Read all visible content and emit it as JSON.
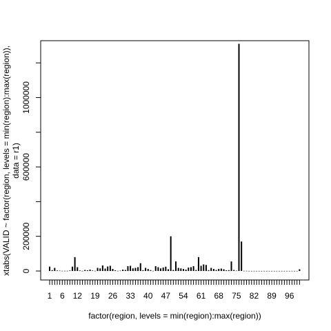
{
  "chart_data": {
    "type": "bar",
    "xlabel": "factor(region, levels = min(region):max(region))",
    "ylabel_lines": [
      "xtabs(VALID ~ factor(region, levels = min(region):max(region)),",
      "data = r1)"
    ],
    "x_tick_labels": [
      "1",
      "6",
      "12",
      "19",
      "26",
      "33",
      "40",
      "47",
      "54",
      "61",
      "68",
      "75",
      "82",
      "89",
      "96"
    ],
    "y_tick_labels": [
      "0",
      "200000",
      "600000",
      "1000000"
    ],
    "y_ticks": [
      0,
      200000,
      400000,
      600000,
      800000,
      1000000,
      1200000
    ],
    "ylim": [
      0,
      1320000
    ],
    "categories_count": 100,
    "values": [
      25000,
      5000,
      18000,
      3000,
      2000,
      1000,
      1000,
      1000,
      3000,
      25000,
      80000,
      22000,
      3000,
      1000,
      6000,
      4000,
      8000,
      3000,
      1000,
      18000,
      15000,
      32000,
      14000,
      26000,
      30000,
      12000,
      4000,
      1000,
      2000,
      8000,
      6000,
      28000,
      30000,
      15000,
      18000,
      22000,
      45000,
      5000,
      18000,
      12000,
      5000,
      1000,
      28000,
      22000,
      15000,
      20000,
      25000,
      10000,
      200000,
      6000,
      55000,
      18000,
      15000,
      12000,
      8000,
      20000,
      22000,
      28000,
      6000,
      80000,
      30000,
      38000,
      35000,
      5000,
      18000,
      12000,
      6000,
      12000,
      14000,
      10000,
      4000,
      5000,
      55000,
      6000,
      2000,
      1310000,
      170000,
      1000,
      1000,
      500,
      500,
      500,
      500,
      500,
      500,
      500,
      500,
      500,
      500,
      500,
      500,
      500,
      500,
      500,
      500,
      500,
      500,
      500,
      500,
      10000
    ]
  }
}
